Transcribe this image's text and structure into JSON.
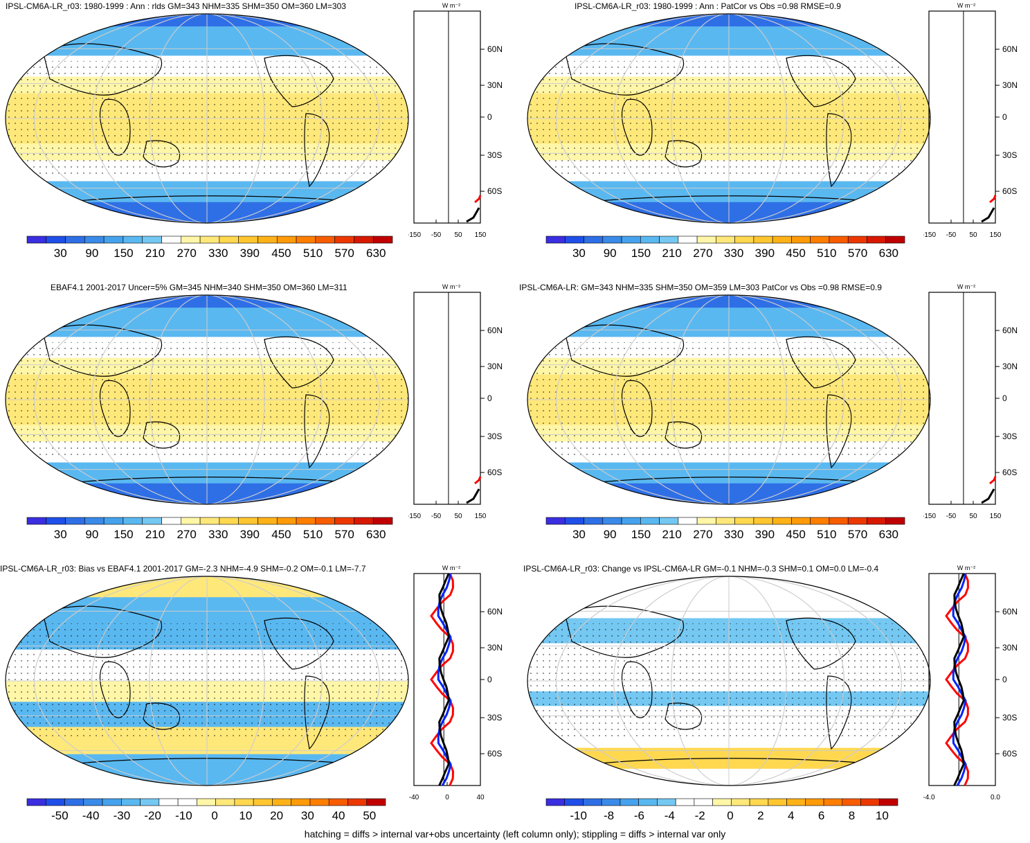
{
  "panels": [
    {
      "id": "p1",
      "title": "IPSL-CM6A-LR_r03: 1980-1999 : Ann : rlds GM=343 NHM=335 SHM=350 OM=360 LM=303",
      "colorbar": {
        "labels": [
          "30",
          "90",
          "150",
          "210",
          "270",
          "330",
          "390",
          "450",
          "510",
          "570",
          "630"
        ],
        "palette": "abs"
      },
      "profile": {
        "unit": "W m⁻²",
        "xticks": [
          "-150",
          "-50",
          "50",
          "150"
        ],
        "lat_labels": [
          "60N",
          "30N",
          "0",
          "30S",
          "60S"
        ],
        "kind": "abs"
      }
    },
    {
      "id": "p2",
      "title": "IPSL-CM6A-LR_r03: 1980-1999 : Ann : PatCor vs Obs =0.98 RMSE=0.9",
      "colorbar": {
        "labels": [
          "30",
          "90",
          "150",
          "210",
          "270",
          "330",
          "390",
          "450",
          "510",
          "570",
          "630"
        ],
        "palette": "abs"
      },
      "profile": {
        "unit": "W m⁻²",
        "xticks": [
          "-150",
          "-50",
          "50",
          "150"
        ],
        "lat_labels": [
          "60N",
          "30N",
          "0",
          "30S",
          "60S"
        ],
        "kind": "abs"
      }
    },
    {
      "id": "p3",
      "title": "EBAF4.1 2001-2017 Uncer=5% GM=345 NHM=340 SHM=350 OM=360 LM=311",
      "colorbar": {
        "labels": [
          "30",
          "90",
          "150",
          "210",
          "270",
          "330",
          "390",
          "450",
          "510",
          "570",
          "630"
        ],
        "palette": "abs"
      },
      "profile": {
        "unit": "W m⁻²",
        "xticks": [
          "-150",
          "-50",
          "50",
          "150"
        ],
        "lat_labels": [
          "60N",
          "30N",
          "0",
          "30S",
          "60S"
        ],
        "kind": "abs"
      }
    },
    {
      "id": "p4",
      "title": "IPSL-CM6A-LR: GM=343 NHM=335 SHM=350 OM=359 LM=303 PatCor vs Obs =0.98 RMSE=0.9",
      "colorbar": {
        "labels": [
          "30",
          "90",
          "150",
          "210",
          "270",
          "330",
          "390",
          "450",
          "510",
          "570",
          "630"
        ],
        "palette": "abs"
      },
      "profile": {
        "unit": "W m⁻²",
        "xticks": [
          "-150",
          "-50",
          "50",
          "150"
        ],
        "lat_labels": [
          "60N",
          "30N",
          "0",
          "30S",
          "60S"
        ],
        "kind": "abs"
      }
    },
    {
      "id": "p5",
      "title": "IPSL-CM6A-LR_r03: Bias vs EBAF4.1 2001-2017 GM=-2.3 NHM=-4.9 SHM=-0.2 OM=-0.1 LM=-7.7",
      "colorbar": {
        "labels": [
          "-50",
          "-40",
          "-30",
          "-20",
          "-10",
          "0",
          "10",
          "20",
          "30",
          "40",
          "50"
        ],
        "palette": "diff"
      },
      "profile": {
        "unit": "W m⁻²",
        "xticks": [
          "-40",
          "0",
          "40"
        ],
        "lat_labels": [
          "60N",
          "30N",
          "0",
          "30S",
          "60S"
        ],
        "kind": "bias"
      }
    },
    {
      "id": "p6",
      "title": "IPSL-CM6A-LR_r03: Change vs IPSL-CM6A-LR GM=-0.1 NHM=-0.3 SHM=0.1 OM=0.0 LM=-0.4",
      "colorbar": {
        "labels": [
          "-10",
          "-8",
          "-6",
          "-4",
          "-2",
          "0",
          "2",
          "4",
          "6",
          "8",
          "10"
        ],
        "palette": "diff"
      },
      "profile": {
        "unit": "W m⁻²",
        "xticks": [
          "-4.0",
          "0.0"
        ],
        "lat_labels": [
          "60N",
          "30N",
          "0",
          "30S",
          "60S"
        ],
        "kind": "change"
      }
    }
  ],
  "palettes": {
    "abs": [
      "#3a2ee0",
      "#1f4fe8",
      "#2f6fe6",
      "#3a8ae8",
      "#46a2ec",
      "#5ab8f0",
      "#74c8f2",
      "#ffffff",
      "#fff6a8",
      "#ffe87a",
      "#ffd850",
      "#ffc630",
      "#ffb218",
      "#ff9a08",
      "#ff7e00",
      "#f85c00",
      "#ec3800",
      "#d81800",
      "#c00000"
    ],
    "diff": [
      "#3a2ee0",
      "#1f4fe8",
      "#2f6fe6",
      "#3a8ae8",
      "#46a2ec",
      "#5ab8f0",
      "#74c8f2",
      "#ffffff",
      "#ffffff",
      "#fff6a8",
      "#ffe87a",
      "#ffd850",
      "#ffc630",
      "#ffb218",
      "#ff9a08",
      "#ff7e00",
      "#f85c00",
      "#ec3800",
      "#c00000"
    ]
  },
  "colors": {
    "ocean_blue": "#5ab8f0",
    "warm_yellow": "#ffe87a",
    "deep_blue": "#2f6fe6",
    "orange": "#ffb218"
  },
  "footer": "hatching = diffs > internal var+obs uncertainty (left column only); stippling = diffs > internal var only"
}
